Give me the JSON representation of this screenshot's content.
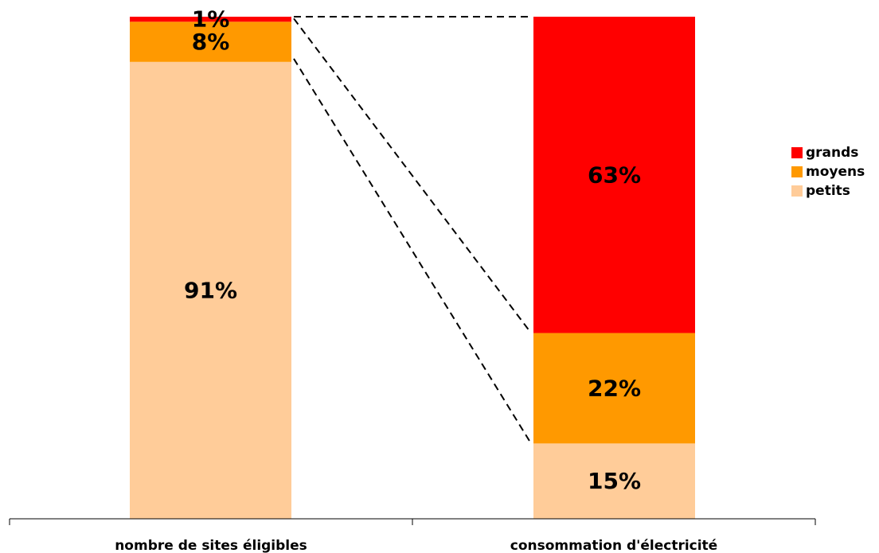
{
  "chart_data": {
    "type": "bar",
    "stacked": true,
    "percent": true,
    "categories": [
      "nombre de sites éligibles",
      "consommation d'électricité"
    ],
    "series": [
      {
        "name": "petits",
        "values": [
          91,
          15
        ],
        "labels": [
          "91%",
          "15%"
        ],
        "color": "#FFCC99"
      },
      {
        "name": "moyens",
        "values": [
          8,
          22
        ],
        "labels": [
          "8%",
          "22%"
        ],
        "color": "#FF9900"
      },
      {
        "name": "grands",
        "values": [
          1,
          63
        ],
        "labels": [
          "1%",
          "63%"
        ],
        "color": "#FF0000"
      }
    ],
    "ylim": [
      0,
      100
    ],
    "grid": false,
    "legend_position": "right",
    "connector_lines": "dashed"
  }
}
